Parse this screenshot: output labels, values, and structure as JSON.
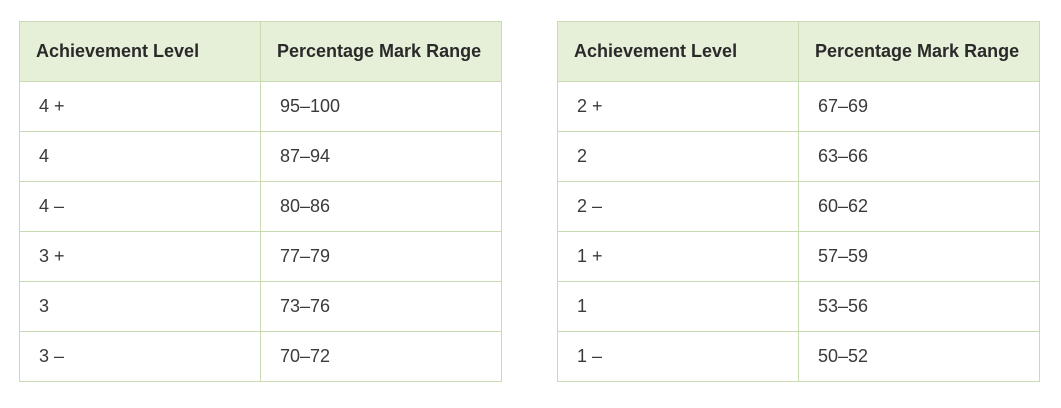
{
  "left_table": {
    "headers": [
      "Achievement Level",
      "Percentage Mark Range"
    ],
    "rows": [
      [
        "4 +",
        "95–100"
      ],
      [
        "4",
        "87–94"
      ],
      [
        "4 –",
        "80–86"
      ],
      [
        "3 +",
        "77–79"
      ],
      [
        "3",
        "73–76"
      ],
      [
        "3 –",
        "70–72"
      ]
    ]
  },
  "right_table": {
    "headers": [
      "Achievement Level",
      "Percentage Mark Range"
    ],
    "rows": [
      [
        "2 +",
        "67–69"
      ],
      [
        "2",
        "63–66"
      ],
      [
        "2 –",
        "60–62"
      ],
      [
        "1 +",
        "57–59"
      ],
      [
        "1",
        "53–56"
      ],
      [
        "1 –",
        "50–52"
      ]
    ]
  },
  "colors": {
    "header_bg": "#e6efd8",
    "border": "#c9dbb3"
  }
}
